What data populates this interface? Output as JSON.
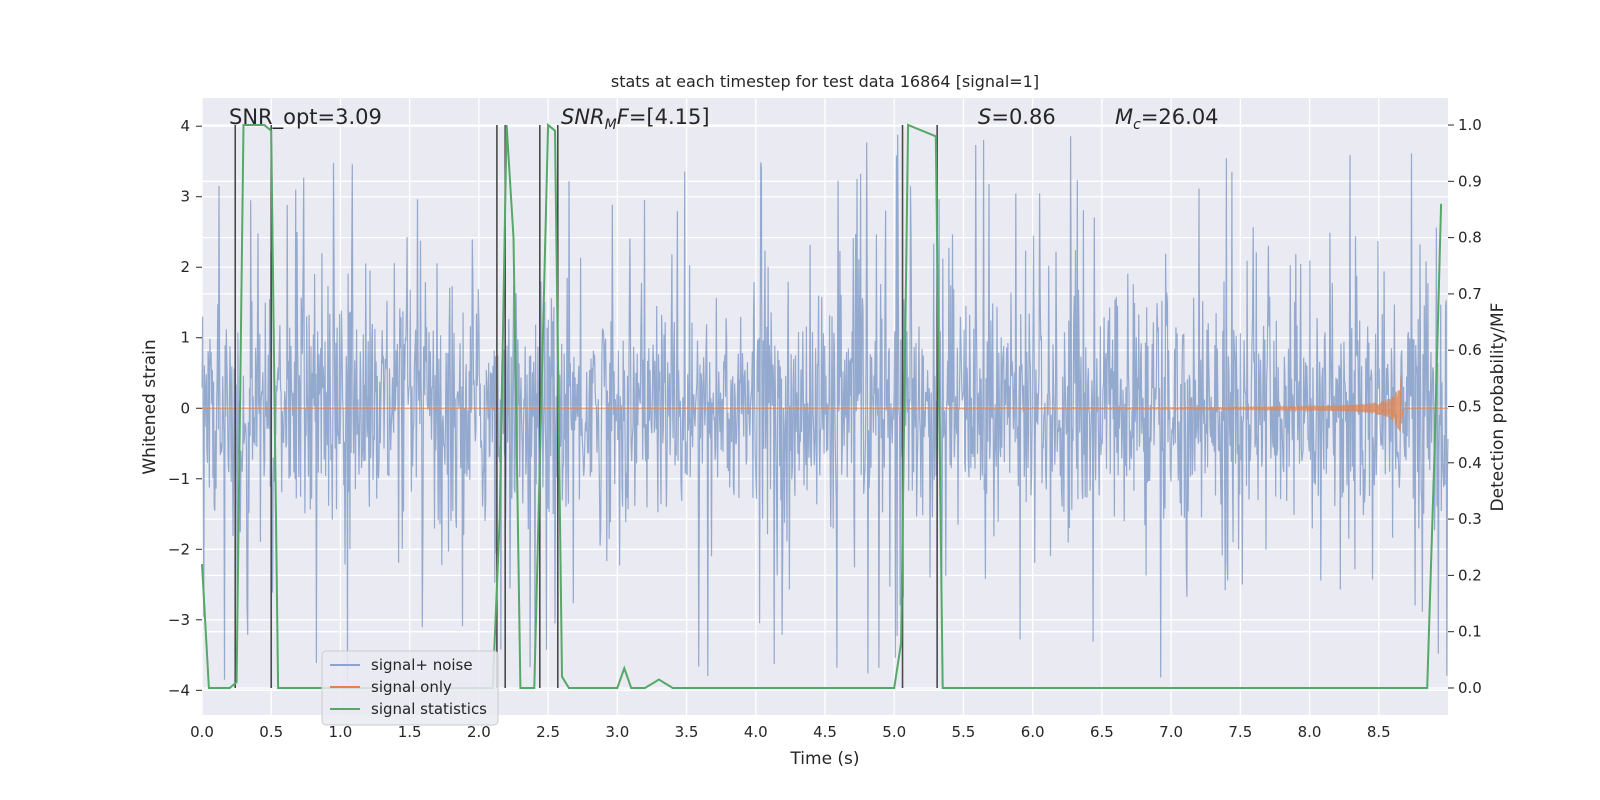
{
  "chart_data": {
    "type": "line",
    "title": "stats at each timestep for test data 16864 [signal=1]",
    "xlabel": "Time (s)",
    "ylabel": "Whitened strain",
    "y2label": "Detection probability/MF",
    "xlim": [
      0.0,
      9.0
    ],
    "ylim": [
      -4.35,
      4.4
    ],
    "y2lim": [
      -0.048,
      1.048
    ],
    "xticks": [
      0.0,
      0.5,
      1.0,
      1.5,
      2.0,
      2.5,
      3.0,
      3.5,
      4.0,
      4.5,
      5.0,
      5.5,
      6.0,
      6.5,
      7.0,
      7.5,
      8.0,
      8.5
    ],
    "xtick_labels": [
      "0.0",
      "0.5",
      "1.0",
      "1.5",
      "2.0",
      "2.5",
      "3.0",
      "3.5",
      "4.0",
      "4.5",
      "5.0",
      "5.5",
      "6.0",
      "6.5",
      "7.0",
      "7.5",
      "8.0",
      "8.5"
    ],
    "yticks": [
      -4,
      -3,
      -2,
      -1,
      0,
      1,
      2,
      3,
      4
    ],
    "ytick_labels": [
      "−4",
      "−3",
      "−2",
      "−1",
      "0",
      "1",
      "2",
      "3",
      "4"
    ],
    "y2ticks": [
      0.0,
      0.1,
      0.2,
      0.3,
      0.4,
      0.5,
      0.6,
      0.7,
      0.8,
      0.9,
      1.0
    ],
    "y2tick_labels": [
      "0.0",
      "0.1",
      "0.2",
      "0.3",
      "0.4",
      "0.5",
      "0.6",
      "0.7",
      "0.8",
      "0.9",
      "1.0"
    ],
    "annotations": {
      "snr_opt": "SNR_opt=3.09",
      "snr_mf": "=[4.15]",
      "snr_mf_label": "SNR",
      "snr_mf_sub": "M",
      "snr_mf_f": "F",
      "s_label": "S",
      "s_value": "=0.86",
      "mc_label": "M",
      "mc_sub": "c",
      "mc_value": "=26.04"
    },
    "legend": {
      "position": "lower-left",
      "entries": [
        "signal+ noise",
        "signal only",
        "signal statistics"
      ]
    },
    "series": [
      {
        "name": "signal+ noise",
        "color": "#4c72b0",
        "description": "whitened noisy strain, roughly within [-2.2, 2.2] with spikes to about ±4",
        "amplitude_band": [
          -1.6,
          1.6
        ],
        "spike_max": 3.9,
        "samples": 2048
      },
      {
        "name": "signal only",
        "color": "#dd8452",
        "description": "chirp signal growing toward merger",
        "t_start": 5.0,
        "t_merger": 8.67,
        "peak_amplitude": 0.7
      },
      {
        "name": "signal statistics",
        "color": "#55a868",
        "axis": "right",
        "x": [
          0.0,
          0.05,
          0.2,
          0.25,
          0.3,
          0.45,
          0.5,
          0.55,
          2.1,
          2.15,
          2.2,
          2.25,
          2.3,
          2.4,
          2.5,
          2.55,
          2.6,
          2.65,
          3.0,
          3.05,
          3.1,
          3.2,
          3.3,
          3.4,
          3.5,
          4.0,
          4.5,
          5.0,
          5.05,
          5.1,
          5.3,
          5.35,
          5.5,
          6.0,
          7.0,
          8.0,
          8.85,
          8.9,
          8.95
        ],
        "y": [
          0.22,
          0.0,
          0.0,
          0.01,
          1.0,
          1.0,
          0.99,
          0.0,
          0.0,
          0.3,
          1.0,
          0.8,
          0.0,
          0.0,
          1.0,
          0.99,
          0.02,
          0.0,
          0.0,
          0.035,
          0.0,
          0.0,
          0.015,
          0.0,
          0.0,
          0.0,
          0.0,
          0.0,
          0.08,
          1.0,
          0.98,
          0.0,
          0.0,
          0.0,
          0.0,
          0.0,
          0.0,
          0.4,
          0.86
        ]
      }
    ],
    "vlines": [
      0.24,
      0.5,
      2.13,
      2.19,
      2.44,
      2.57,
      5.06,
      5.31
    ],
    "vline_color": "#4a4a4a"
  }
}
